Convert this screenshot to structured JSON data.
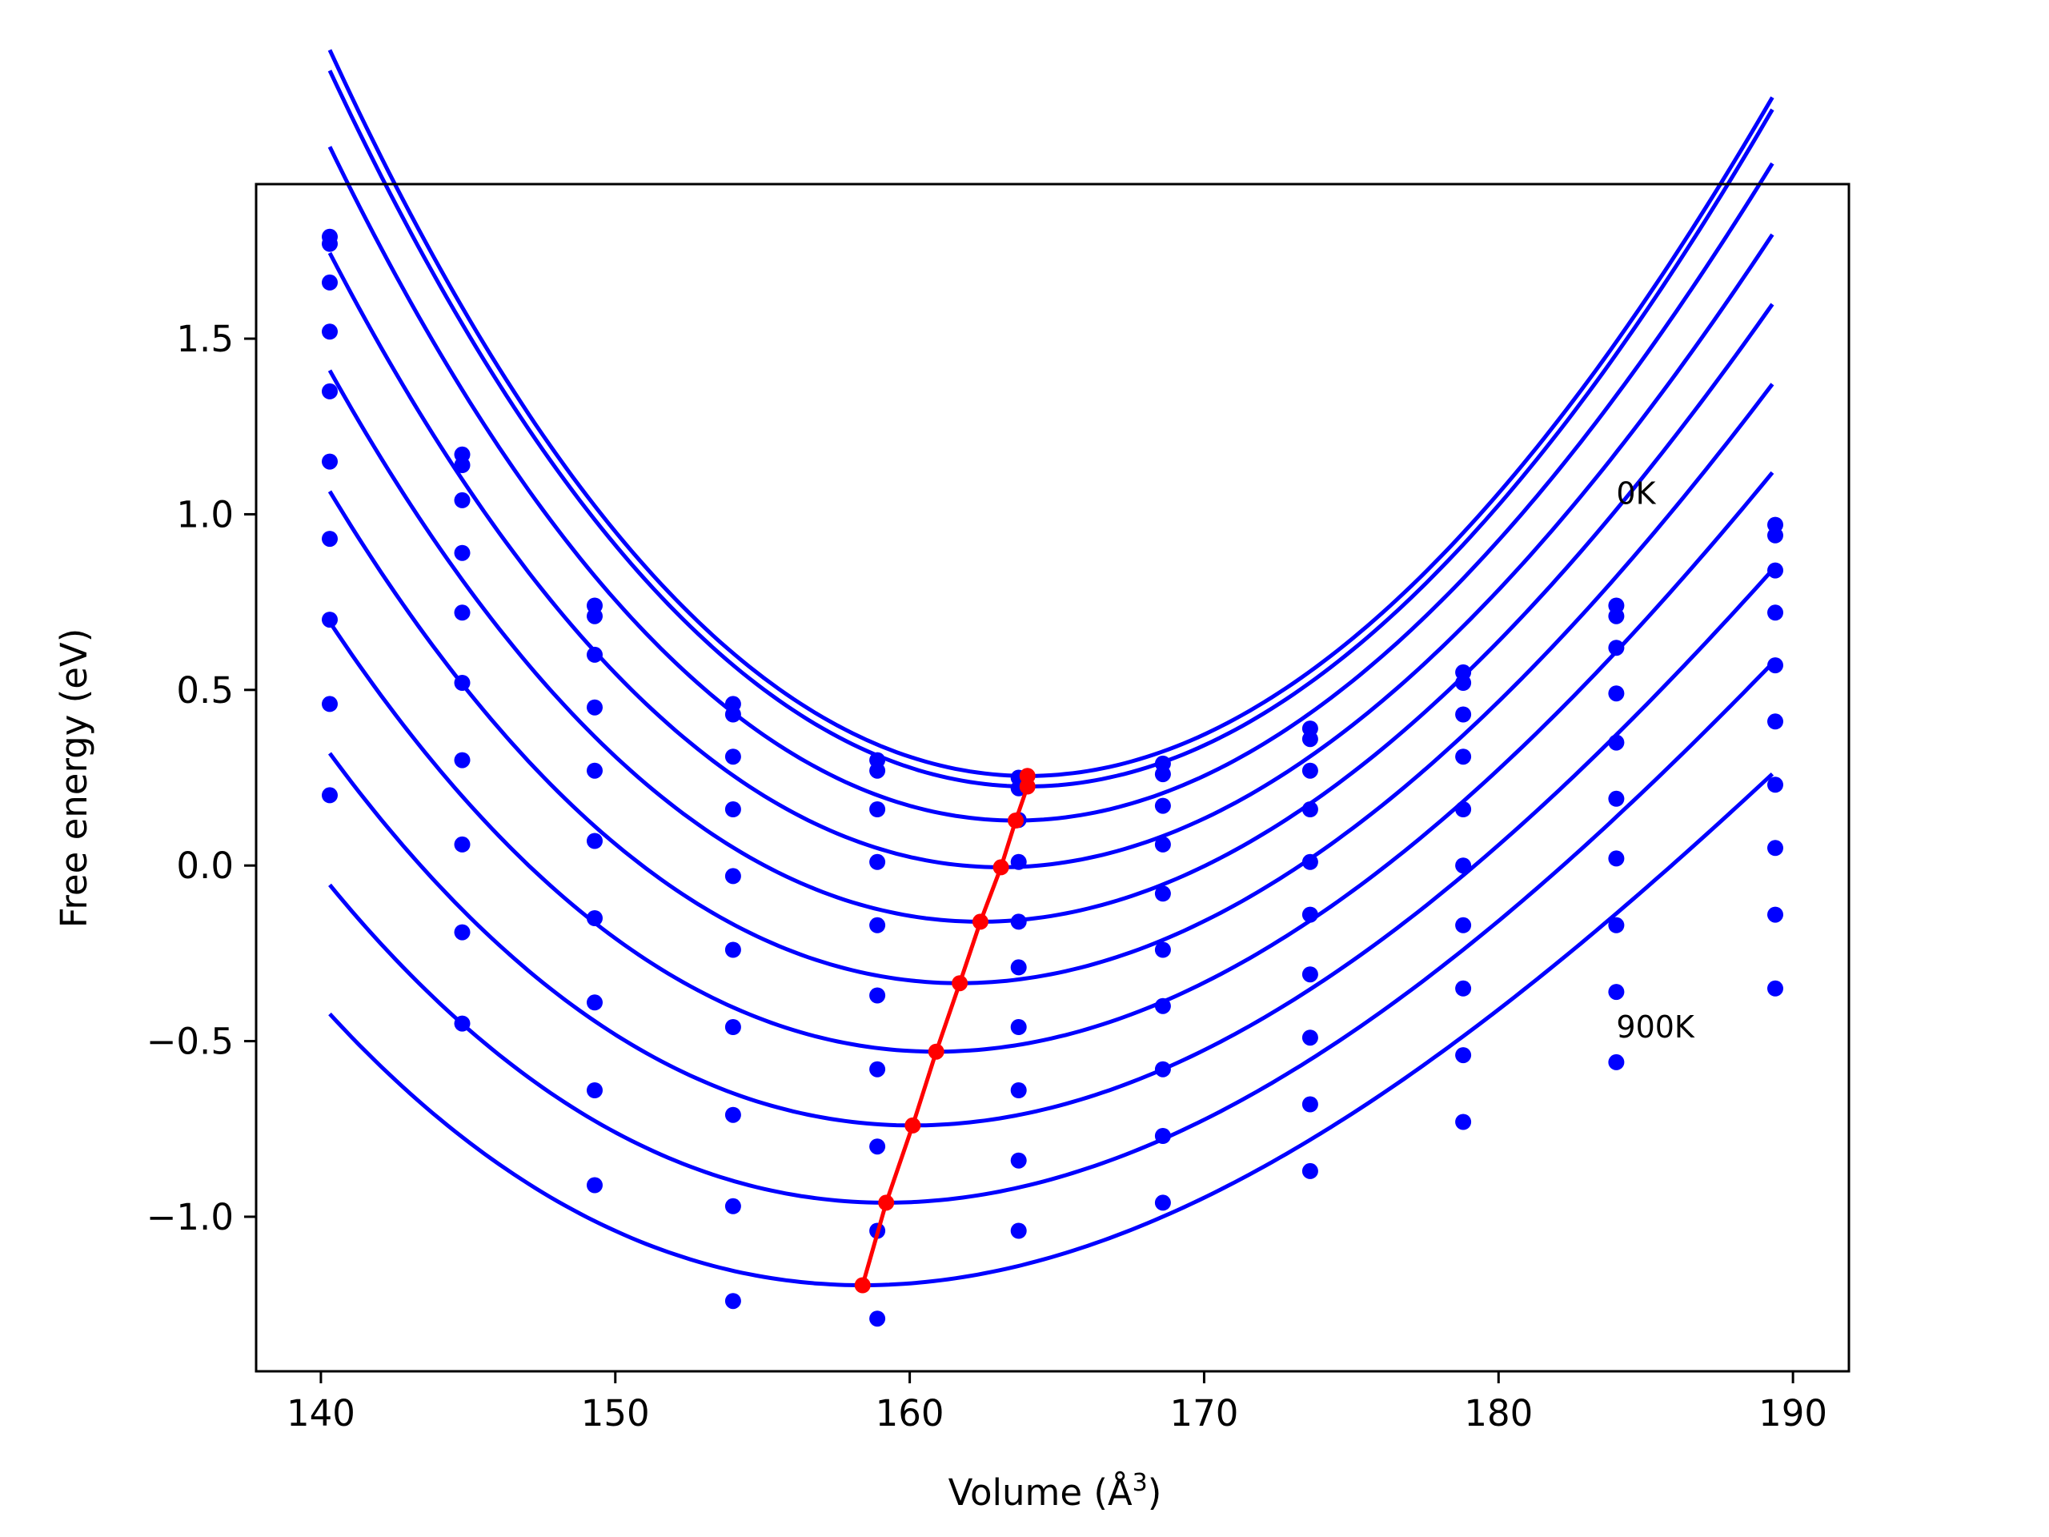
{
  "chart_data": {
    "type": "line",
    "title": "",
    "xlabel": "Volume (Å",
    "xlabel_sup": "3",
    "xlabel_close": ")",
    "ylabel": "Free energy (eV)",
    "xlim": [
      137.8,
      191.9
    ],
    "ylim": [
      -1.44,
      1.94
    ],
    "xticks": [
      {
        "value": 140,
        "label": "140"
      },
      {
        "value": 150,
        "label": "150"
      },
      {
        "value": 160,
        "label": "160"
      },
      {
        "value": 170,
        "label": "170"
      },
      {
        "value": 180,
        "label": "180"
      },
      {
        "value": 190,
        "label": "190"
      }
    ],
    "yticks": [
      {
        "value": -1.0,
        "label": "−1.0"
      },
      {
        "value": -0.5,
        "label": "−0.5"
      },
      {
        "value": 0.0,
        "label": "0.0"
      },
      {
        "value": 0.5,
        "label": "0.5"
      },
      {
        "value": 1.0,
        "label": "1.0"
      },
      {
        "value": 1.5,
        "label": "1.5"
      }
    ],
    "annotations": [
      {
        "text": "0K",
        "x": 184.0,
        "y": 1.03
      },
      {
        "text": "900K",
        "x": 184.0,
        "y": -0.49
      }
    ],
    "colors": {
      "curves": "#0000ff",
      "minima": "#ff0000"
    },
    "volumes": [
      140.3,
      144.8,
      149.3,
      154.0,
      158.9,
      163.7,
      168.6,
      173.6,
      178.8,
      184.0,
      189.4
    ],
    "series": [
      {
        "points": [
          1.79,
          1.17,
          0.74,
          0.46,
          0.3,
          0.25,
          0.29,
          0.39,
          0.55,
          0.74,
          0.97
        ],
        "fit": {
          "v0": 164.0,
          "f0": 0.255,
          "a": 0.00336,
          "b": -1.35e-05
        }
      },
      {
        "points": [
          1.77,
          1.14,
          0.71,
          0.43,
          0.27,
          0.22,
          0.26,
          0.36,
          0.52,
          0.71,
          0.94
        ],
        "fit": {
          "v0": 164.0,
          "f0": 0.225,
          "a": 0.00333,
          "b": -1.26e-05
        }
      },
      {
        "points": [
          1.66,
          1.04,
          0.6,
          0.31,
          0.16,
          0.13,
          0.17,
          0.27,
          0.43,
          0.62,
          0.84
        ],
        "fit": {
          "v0": 163.6,
          "f0": 0.128,
          "a": 0.0032,
          "b": -1.43e-05
        }
      },
      {
        "points": [
          1.52,
          0.89,
          0.45,
          0.16,
          0.01,
          0.01,
          0.06,
          0.16,
          0.31,
          0.49,
          0.72
        ],
        "fit": {
          "v0": 163.1,
          "f0": -0.005,
          "a": 0.00302,
          "b": -1.51e-05
        }
      },
      {
        "points": [
          1.35,
          0.72,
          0.27,
          -0.03,
          -0.17,
          -0.16,
          -0.08,
          0.01,
          0.16,
          0.35,
          0.57
        ],
        "fit": {
          "v0": 162.4,
          "f0": -0.16,
          "a": 0.00286,
          "b": -1.6e-05
        }
      },
      {
        "points": [
          1.15,
          0.52,
          0.07,
          -0.24,
          -0.37,
          -0.29,
          -0.24,
          -0.14,
          0.0,
          0.19,
          0.41
        ],
        "fit": {
          "v0": 161.7,
          "f0": -0.335,
          "a": 0.0027,
          "b": -1.67e-05
        }
      },
      {
        "points": [
          0.93,
          0.3,
          -0.15,
          -0.46,
          -0.58,
          -0.46,
          -0.4,
          -0.31,
          -0.17,
          0.02,
          0.23
        ],
        "fit": {
          "v0": 160.9,
          "f0": -0.53,
          "a": 0.00253,
          "b": -1.71e-05
        }
      },
      {
        "points": [
          0.7,
          0.06,
          -0.39,
          -0.71,
          -0.8,
          -0.64,
          -0.58,
          -0.49,
          -0.35,
          -0.17,
          0.05
        ],
        "fit": {
          "v0": 160.1,
          "f0": -0.74,
          "a": 0.00236,
          "b": -1.73e-05
        }
      },
      {
        "points": [
          0.46,
          -0.19,
          -0.64,
          -0.97,
          -1.04,
          -0.84,
          -0.77,
          -0.68,
          -0.54,
          -0.36,
          -0.14
        ],
        "fit": {
          "v0": 159.2,
          "f0": -0.96,
          "a": 0.00221,
          "b": -1.71e-05
        }
      },
      {
        "points": [
          0.2,
          -0.45,
          -0.91,
          -1.24,
          -1.29,
          -1.04,
          -0.96,
          -0.87,
          -0.73,
          -0.56,
          -0.35
        ],
        "fit": {
          "v0": 158.4,
          "f0": -1.195,
          "a": 0.00205,
          "b": -1.7e-05
        }
      }
    ],
    "minima_line": {
      "x": [
        164.0,
        164.0,
        163.6,
        163.1,
        162.4,
        161.7,
        160.9,
        160.1,
        159.2,
        158.4
      ],
      "y": [
        0.255,
        0.225,
        0.128,
        -0.005,
        -0.16,
        -0.335,
        -0.53,
        -0.74,
        -0.96,
        -1.195
      ]
    }
  }
}
